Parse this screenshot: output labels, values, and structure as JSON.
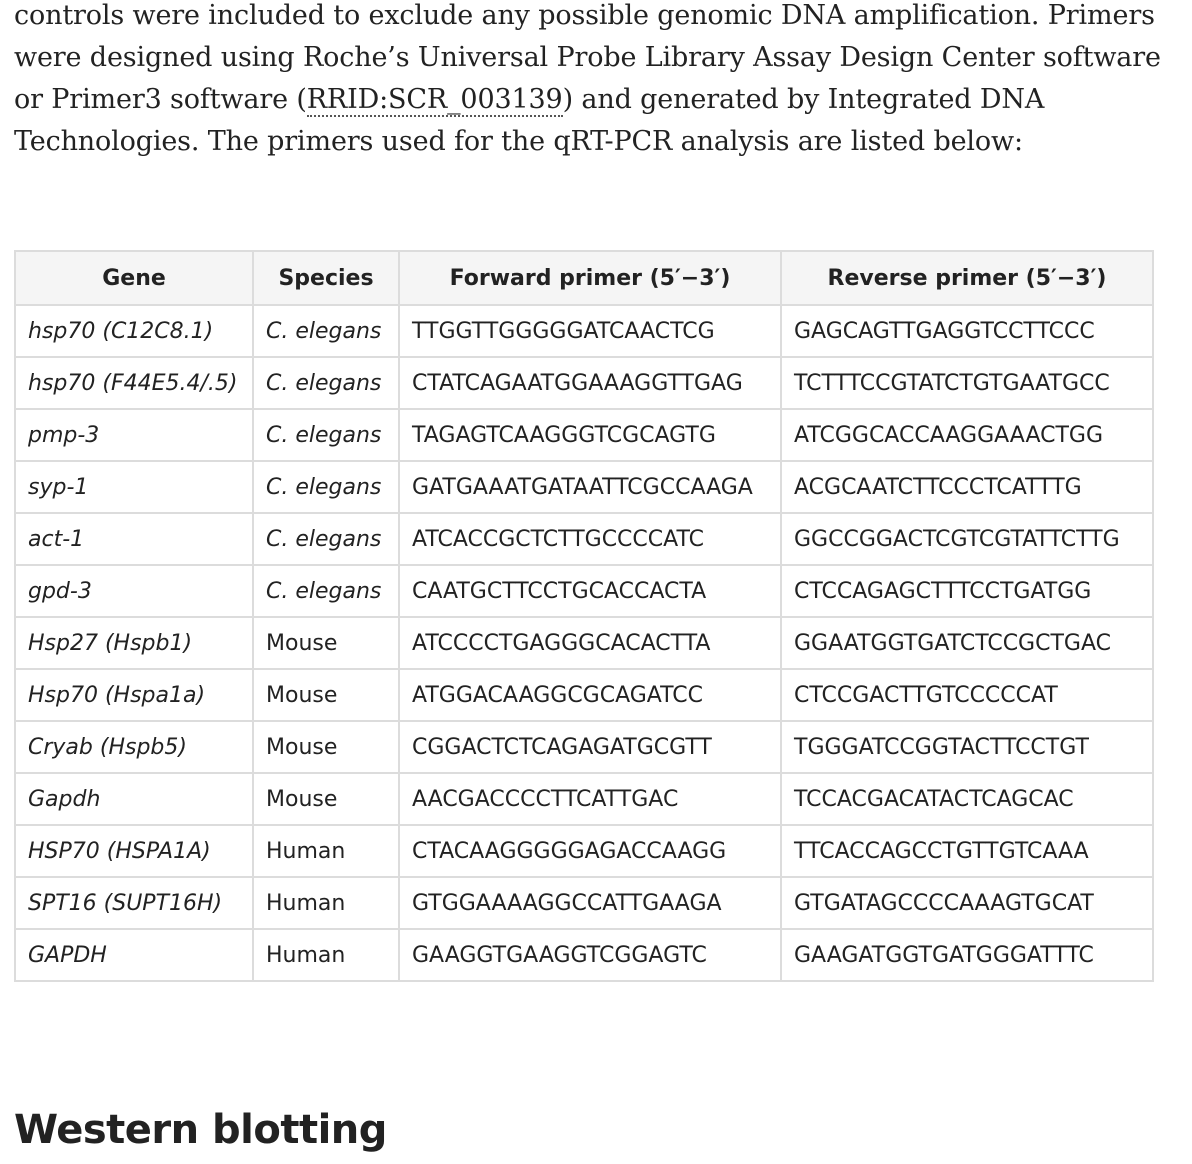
{
  "paragraph": {
    "before_link": "controls were included to exclude any possible genomic DNA amplification. Primers were designed using Roche’s Universal Probe Library Assay Design Center software or Primer3 software (",
    "link_text": "RRID:SCR_003139",
    "after_link": ") and generated by Integrated DNA Technologies. The primers used for the qRT-PCR analysis are listed below:"
  },
  "table": {
    "headers": {
      "gene": "Gene",
      "species": "Species",
      "forward": "Forward primer (5′−3′)",
      "reverse": "Reverse primer (5′−3′)"
    },
    "rows": [
      {
        "gene": "hsp70 (C12C8.1)",
        "species": "C. elegans",
        "forward": "TTGGTTGGGGGATCAACTCG",
        "reverse": "GAGCAGTTGAGGTCCTTCCC"
      },
      {
        "gene": "hsp70 (F44E5.4/.5)",
        "species": "C. elegans",
        "forward": "CTATCAGAATGGAAAGGTTGAG",
        "reverse": "TCTTTCCGTATCTGTGAATGCC"
      },
      {
        "gene": "pmp-3",
        "species": "C. elegans",
        "forward": "TAGAGTCAAGGGTCGCAGTG",
        "reverse": "ATCGGCACCAAGGAAACTGG"
      },
      {
        "gene": "syp-1",
        "species": "C. elegans",
        "forward": "GATGAAATGATAATTCGCCAAGA",
        "reverse": "ACGCAATCTTCCCTCATTTG"
      },
      {
        "gene": "act-1",
        "species": "C. elegans",
        "forward": "ATCACCGCTCTTGCCCCATC",
        "reverse": "GGCCGGACTCGTCGTATTCTTG"
      },
      {
        "gene": "gpd-3",
        "species": "C. elegans",
        "forward": "CAATGCTTCCTGCACCACTA",
        "reverse": "CTCCAGAGCTTTCCTGATGG"
      },
      {
        "gene": "Hsp27 (Hspb1)",
        "species": "Mouse",
        "forward": "ATCCCCTGAGGGCACACTTA",
        "reverse": "GGAATGGTGATCTCCGCTGAC"
      },
      {
        "gene": "Hsp70 (Hspa1a)",
        "species": "Mouse",
        "forward": "ATGGACAAGGCGCAGATCC",
        "reverse": "CTCCGACTTGTCCCCCAT"
      },
      {
        "gene": "Cryab (Hspb5)",
        "species": "Mouse",
        "forward": "CGGACTCTCAGAGATGCGTT",
        "reverse": "TGGGATCCGGTACTTCCTGT"
      },
      {
        "gene": "Gapdh",
        "species": "Mouse",
        "forward": "AACGACCCCTTCATTGAC",
        "reverse": "TCCACGACATACTCAGCAC"
      },
      {
        "gene": "HSP70 (HSPA1A)",
        "species": "Human",
        "forward": "CTACAAGGGGGAGACCAAGG",
        "reverse": "TTCACCAGCCTGTTGTCAAA"
      },
      {
        "gene": "SPT16 (SUPT16H)",
        "species": "Human",
        "forward": "GTGGAAAAGGCCATTGAAGA",
        "reverse": "GTGATAGCCCCAAAGTGCAT"
      },
      {
        "gene": "GAPDH",
        "species": "Human",
        "forward": "GAAGGTGAAGGTCGGAGTC",
        "reverse": "GAAGATGGTGATGGGATTTC"
      }
    ]
  },
  "section": {
    "heading": "Western blotting"
  }
}
